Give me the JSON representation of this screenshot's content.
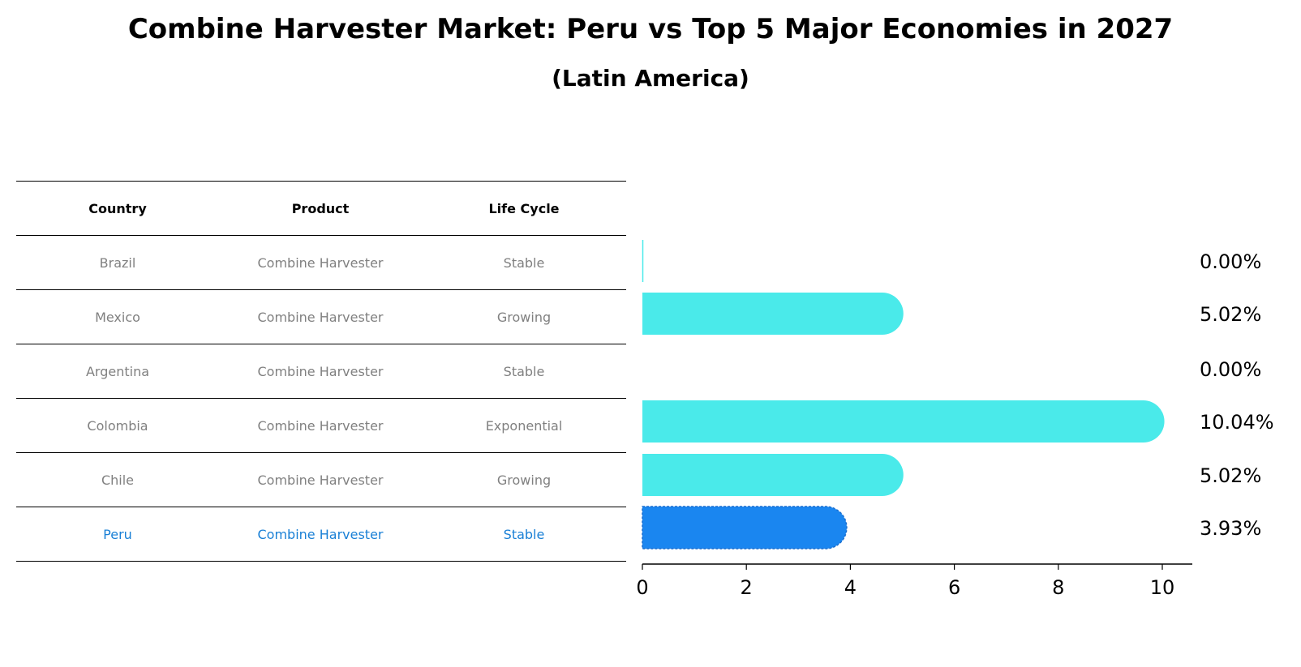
{
  "title": "Combine Harvester Market: Peru vs Top 5 Major Economies in 2027",
  "subtitle": "(Latin America)",
  "table": {
    "headers": [
      "Country",
      "Product",
      "Life Cycle"
    ],
    "rows": [
      [
        "Brazil",
        "Combine Harvester",
        "Stable"
      ],
      [
        "Mexico",
        "Combine Harvester",
        "Growing"
      ],
      [
        "Argentina",
        "Combine Harvester",
        "Stable"
      ],
      [
        "Colombia",
        "Combine Harvester",
        "Exponential"
      ],
      [
        "Chile",
        "Combine Harvester",
        "Growing"
      ],
      [
        "Peru",
        "Combine Harvester",
        "Stable"
      ]
    ]
  },
  "colors": {
    "bar": "#4aeaea",
    "highlight_bar": "#1a86f0",
    "highlight_text": "#1a80d6",
    "muted_text": "#808080"
  },
  "chart_data": {
    "type": "bar",
    "orientation": "horizontal",
    "categories": [
      "Brazil",
      "Mexico",
      "Argentina",
      "Colombia",
      "Chile",
      "Peru"
    ],
    "values": [
      0.0,
      5.02,
      0.0,
      10.04,
      5.02,
      3.93
    ],
    "value_labels": [
      "0.00%",
      "5.02%",
      "0.00%",
      "10.04%",
      "5.02%",
      "3.93%"
    ],
    "highlight": "Peru",
    "xlim": [
      0,
      10.5
    ],
    "xticks": [
      0,
      2,
      4,
      6,
      8,
      10
    ],
    "grid": false
  }
}
